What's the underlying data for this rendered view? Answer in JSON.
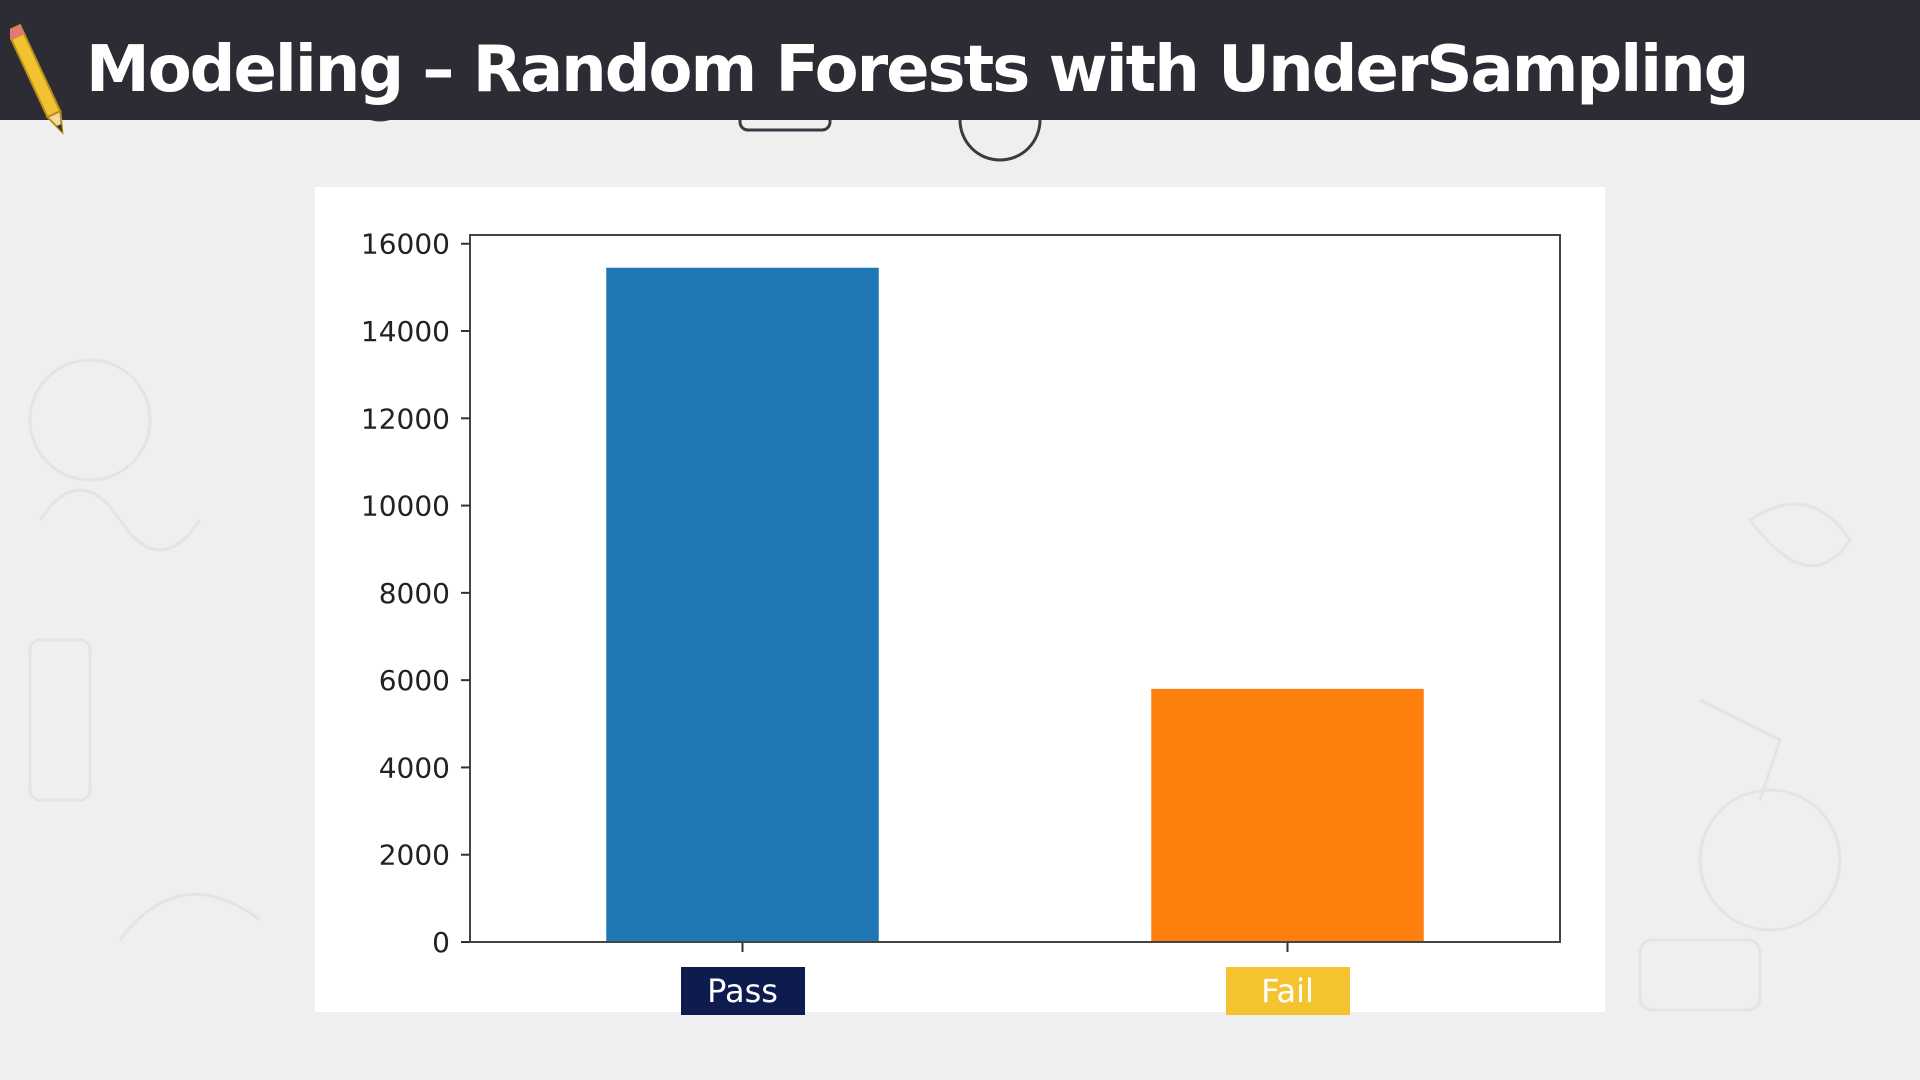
{
  "slide": {
    "title": "Modeling – Random Forests with UnderSampling"
  },
  "chart_data": {
    "type": "bar",
    "categories": [
      "Pass",
      "Fail"
    ],
    "values": [
      15450,
      5800
    ],
    "bar_colors": [
      "#1f77b4",
      "#ff7f0e"
    ],
    "category_label_colors": [
      "#0d1b4f",
      "#f4c430"
    ],
    "yticks": [
      0,
      2000,
      4000,
      6000,
      8000,
      10000,
      12000,
      14000,
      16000
    ],
    "ylim": [
      0,
      16200
    ],
    "title": "",
    "xlabel": "",
    "ylabel": "",
    "grid": false,
    "legend": "none"
  },
  "theme": {
    "header_bg": "#2d2b34",
    "page_bg": "#efefef",
    "pencil_color": "#f2c230"
  }
}
